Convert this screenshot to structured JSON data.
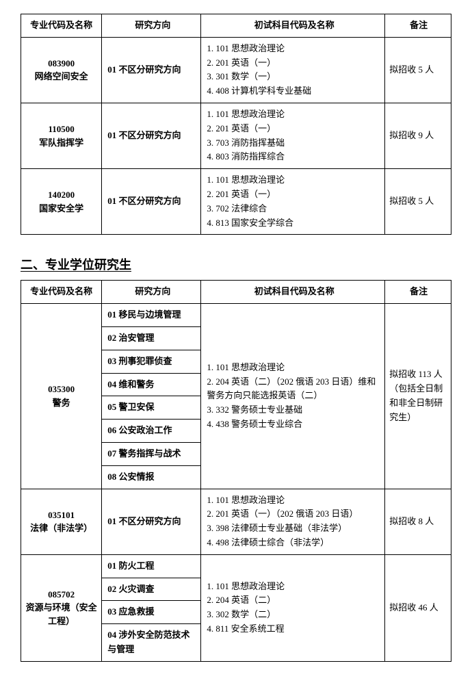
{
  "table1": {
    "headers": {
      "code": "专业代码及名称",
      "direction": "研究方向",
      "subjects": "初试科目代码及名称",
      "remark": "备注"
    },
    "rows": [
      {
        "code": "083900",
        "name": "网络空间安全",
        "direction": "01 不区分研究方向",
        "subjects": [
          "1. 101 思想政治理论",
          "2. 201 英语（一）",
          "3. 301 数学（一）",
          "4. 408 计算机学科专业基础"
        ],
        "remark": "拟招收 5 人"
      },
      {
        "code": "110500",
        "name": "军队指挥学",
        "direction": "01 不区分研究方向",
        "subjects": [
          "1. 101 思想政治理论",
          "2. 201 英语（一）",
          "3. 703 消防指挥基础",
          "4. 803 消防指挥综合"
        ],
        "remark": "拟招收 9 人"
      },
      {
        "code": "140200",
        "name": "国家安全学",
        "direction": "01 不区分研究方向",
        "subjects": [
          "1. 101 思想政治理论",
          "2. 201 英语（一）",
          "3. 702 法律综合",
          "4. 813 国家安全学综合"
        ],
        "remark": "拟招收 5 人"
      }
    ]
  },
  "sectionTitle": "二、专业学位研究生",
  "table2": {
    "headers": {
      "code": "专业代码及名称",
      "direction": "研究方向",
      "subjects": "初试科目代码及名称",
      "remark": "备注"
    },
    "group1": {
      "code": "035300",
      "name": "警务",
      "directions": [
        "01 移民与边境管理",
        "02 治安管理",
        "03 刑事犯罪侦查",
        "04 维和警务",
        "05 警卫安保",
        "06 公安政治工作",
        "07 警务指挥与战术",
        "08 公安情报"
      ],
      "subjects": [
        "1. 101 思想政治理论",
        "2. 204 英语（二）（202 俄语 203 日语）维和警务方向只能选报英语（二）",
        "3. 332 警务硕士专业基础",
        "4. 438 警务硕士专业综合"
      ],
      "remark": "拟招收 113 人（包括全日制和非全日制研究生）"
    },
    "group2": {
      "code": "035101",
      "name": "法律（非法学）",
      "direction": "01 不区分研究方向",
      "subjects": [
        "1. 101 思想政治理论",
        "2. 201 英语（一）（202 俄语 203 日语）",
        "3. 398 法律硕士专业基础（非法学）",
        "4. 498 法律硕士综合（非法学）"
      ],
      "remark": "拟招收 8 人"
    },
    "group3": {
      "code": "085702",
      "name": "资源与环境（安全工程）",
      "directions": [
        "01 防火工程",
        "02 火灾调查",
        "03 应急救援",
        "04 涉外安全防范技术与管理"
      ],
      "subjects": [
        "1. 101 思想政治理论",
        "2. 204 英语（二）",
        "3. 302 数学（二）",
        "4. 811 安全系统工程"
      ],
      "remark": "拟招收 46 人"
    }
  }
}
